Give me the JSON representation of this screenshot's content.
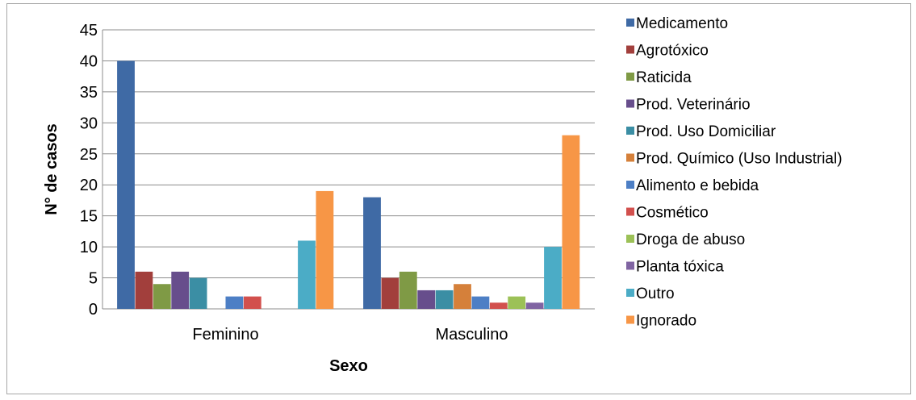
{
  "chart_data": {
    "type": "bar",
    "title": "",
    "xlabel": "Sexo",
    "ylabel": "N° de casos",
    "ylim": [
      0,
      45
    ],
    "yticks": [
      0,
      5,
      10,
      15,
      20,
      25,
      30,
      35,
      40,
      45
    ],
    "grid": true,
    "legend_position": "right",
    "categories": [
      "Feminino",
      "Masculino"
    ],
    "series": [
      {
        "name": "Medicamento",
        "color": "#3f6aa5",
        "values": [
          40,
          18
        ]
      },
      {
        "name": "Agrotóxico",
        "color": "#a23f3c",
        "values": [
          6,
          5
        ]
      },
      {
        "name": "Raticida",
        "color": "#7f9a45",
        "values": [
          4,
          6
        ]
      },
      {
        "name": "Prod. Veterinário",
        "color": "#674e8c",
        "values": [
          6,
          3
        ]
      },
      {
        "name": "Prod. Uso Domiciliar",
        "color": "#3b8ea4",
        "values": [
          5,
          3
        ]
      },
      {
        "name": "Prod. Químico (Uso Industrial)",
        "color": "#d5803a",
        "values": [
          0,
          4
        ]
      },
      {
        "name": "Alimento e bebida",
        "color": "#4d7fc5",
        "values": [
          2,
          2
        ]
      },
      {
        "name": "Cosmético",
        "color": "#d2504d",
        "values": [
          2,
          1
        ]
      },
      {
        "name": "Droga de abuso",
        "color": "#9cc157",
        "values": [
          0,
          2
        ]
      },
      {
        "name": "Planta tóxica",
        "color": "#8064a2",
        "values": [
          0,
          1
        ]
      },
      {
        "name": "Outro",
        "color": "#4bacc6",
        "values": [
          11,
          10
        ]
      },
      {
        "name": "Ignorado",
        "color": "#f79646",
        "values": [
          19,
          28
        ]
      }
    ]
  }
}
